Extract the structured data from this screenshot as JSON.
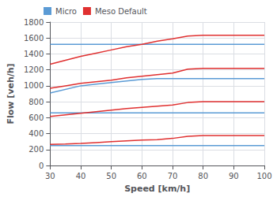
{
  "chart_data": {
    "type": "line",
    "xlabel": "Speed [km/h]",
    "ylabel": "Flow [veh/h]",
    "xlim": [
      30,
      100
    ],
    "ylim": [
      0,
      1800
    ],
    "xticks": [
      30,
      40,
      50,
      60,
      70,
      80,
      90,
      100
    ],
    "yticks": [
      0,
      200,
      400,
      600,
      800,
      1000,
      1200,
      1400,
      1600,
      1800
    ],
    "grid": true,
    "legend": "upper left",
    "series": [
      {
        "name": "Micro",
        "color": "#5B9BD5",
        "x": [
          30,
          40,
          50,
          60,
          65,
          70,
          80,
          90,
          100
        ],
        "values": [
          250,
          250,
          250,
          250,
          250,
          250,
          250,
          250,
          250
        ]
      },
      {
        "name": "Micro",
        "color": "#5B9BD5",
        "x": [
          30,
          40,
          50,
          60,
          65,
          70,
          80,
          90,
          100
        ],
        "values": [
          660,
          660,
          660,
          660,
          660,
          660,
          660,
          660,
          660
        ]
      },
      {
        "name": "Micro",
        "color": "#5B9BD5",
        "x": [
          30,
          40,
          45,
          50,
          55,
          60,
          65,
          70,
          80,
          90,
          100
        ],
        "values": [
          910,
          1000,
          1020,
          1040,
          1060,
          1080,
          1090,
          1090,
          1090,
          1090,
          1090
        ]
      },
      {
        "name": "Micro",
        "color": "#5B9BD5",
        "x": [
          30,
          40,
          50,
          60,
          65,
          70,
          80,
          90,
          100
        ],
        "values": [
          1520,
          1520,
          1520,
          1520,
          1520,
          1520,
          1520,
          1520,
          1520
        ]
      },
      {
        "name": "Meso Default",
        "color": "#E03030",
        "x": [
          30,
          35,
          40,
          45,
          50,
          55,
          60,
          65,
          70,
          75,
          80,
          90,
          100
        ],
        "values": [
          265,
          270,
          278,
          288,
          298,
          308,
          318,
          325,
          340,
          365,
          375,
          375,
          375
        ]
      },
      {
        "name": "Meso Default",
        "color": "#E03030",
        "x": [
          30,
          35,
          40,
          45,
          50,
          55,
          60,
          65,
          70,
          75,
          80,
          90,
          100
        ],
        "values": [
          615,
          635,
          655,
          675,
          695,
          715,
          730,
          745,
          760,
          790,
          800,
          800,
          800
        ]
      },
      {
        "name": "Meso Default",
        "color": "#E03030",
        "x": [
          30,
          35,
          40,
          45,
          50,
          55,
          60,
          65,
          70,
          75,
          80,
          90,
          100
        ],
        "values": [
          970,
          1000,
          1030,
          1050,
          1070,
          1100,
          1120,
          1140,
          1160,
          1210,
          1220,
          1220,
          1220
        ]
      },
      {
        "name": "Meso Default",
        "color": "#E03030",
        "x": [
          30,
          35,
          40,
          45,
          50,
          55,
          60,
          65,
          70,
          75,
          80,
          90,
          100
        ],
        "values": [
          1270,
          1320,
          1370,
          1410,
          1450,
          1490,
          1520,
          1560,
          1590,
          1625,
          1635,
          1635,
          1635
        ]
      }
    ]
  }
}
